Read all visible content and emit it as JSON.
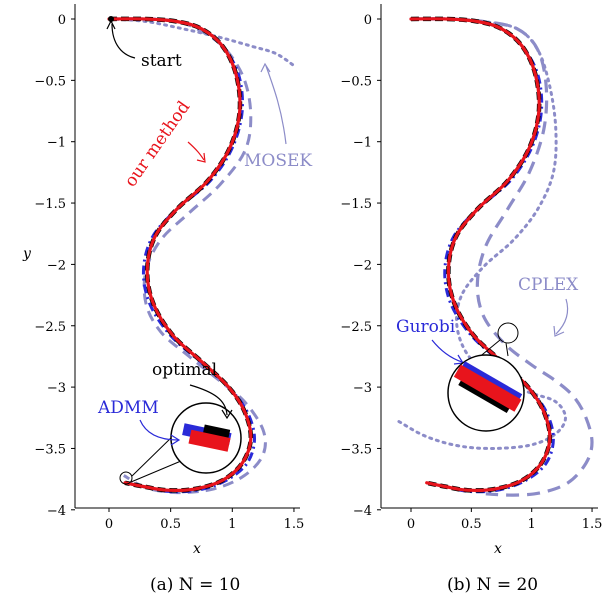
{
  "colors": {
    "ours": "#e8141c",
    "admm": "#2a2ad8",
    "optimal": "#000000",
    "solver": "#8c8cc8"
  },
  "chart_data": [
    {
      "type": "line",
      "caption": "(a) N = 10",
      "xlabel": "x",
      "ylabel": "y",
      "xlim": [
        -0.15,
        1.58
      ],
      "ylim": [
        -4.02,
        0.1
      ],
      "xticks": [
        "0",
        "0.5",
        "1",
        "1.5"
      ],
      "yticks": [
        "0",
        "−0.5",
        "−1",
        "−1.5",
        "−2",
        "−2.5",
        "−3",
        "−3.5",
        "−4"
      ],
      "annotations": {
        "start": "start",
        "ours": "our method",
        "solver": "MOSEK",
        "optimal": "optimal",
        "admm": "ADMM"
      },
      "series": [
        {
          "name": "MOSEK",
          "style": "dotted",
          "x": [
            0.0,
            0.3,
            0.6,
            0.9,
            1.15,
            1.35,
            1.5
          ],
          "y": [
            0.0,
            -0.02,
            -0.08,
            -0.15,
            -0.22,
            -0.28,
            -0.38
          ]
        },
        {
          "name": "solver (dashed)",
          "style": "dashed",
          "x": [
            0.0,
            0.3,
            0.55,
            0.75,
            0.95,
            1.1,
            1.15,
            1.1,
            0.9,
            0.65,
            0.42,
            0.3,
            0.3,
            0.42,
            0.65,
            0.9,
            1.1,
            1.25,
            1.25,
            1.1,
            0.85,
            0.55,
            0.3,
            0.12
          ],
          "y": [
            0.0,
            0.0,
            -0.02,
            -0.1,
            -0.25,
            -0.5,
            -0.8,
            -1.08,
            -1.35,
            -1.58,
            -1.8,
            -2.05,
            -2.32,
            -2.55,
            -2.75,
            -2.95,
            -3.12,
            -3.35,
            -3.55,
            -3.72,
            -3.83,
            -3.86,
            -3.82,
            -3.72
          ]
        },
        {
          "name": "ADMM",
          "style": "dashdot",
          "x": [
            0.0,
            0.3,
            0.55,
            0.75,
            0.92,
            1.05,
            1.08,
            1.0,
            0.82,
            0.55,
            0.35,
            0.28,
            0.33,
            0.5,
            0.75,
            0.97,
            1.12,
            1.18,
            1.12,
            0.95,
            0.72,
            0.48,
            0.28,
            0.13
          ],
          "y": [
            0.0,
            0.0,
            -0.02,
            -0.08,
            -0.22,
            -0.45,
            -0.75,
            -1.05,
            -1.32,
            -1.55,
            -1.78,
            -2.05,
            -2.32,
            -2.58,
            -2.8,
            -3.0,
            -3.2,
            -3.42,
            -3.62,
            -3.76,
            -3.84,
            -3.85,
            -3.81,
            -3.78
          ]
        },
        {
          "name": "optimal",
          "style": "solid",
          "x": [
            0.0,
            0.3,
            0.55,
            0.75,
            0.92,
            1.03,
            1.06,
            0.98,
            0.8,
            0.55,
            0.37,
            0.31,
            0.36,
            0.52,
            0.76,
            0.97,
            1.1,
            1.15,
            1.08,
            0.92,
            0.7,
            0.47,
            0.28,
            0.13
          ],
          "y": [
            0.0,
            0.0,
            -0.02,
            -0.08,
            -0.22,
            -0.45,
            -0.75,
            -1.05,
            -1.32,
            -1.55,
            -1.78,
            -2.05,
            -2.32,
            -2.58,
            -2.8,
            -3.0,
            -3.2,
            -3.42,
            -3.62,
            -3.76,
            -3.83,
            -3.84,
            -3.81,
            -3.78
          ]
        },
        {
          "name": "our method",
          "style": "solid",
          "x": [
            0.0,
            0.3,
            0.55,
            0.75,
            0.92,
            1.03,
            1.06,
            0.98,
            0.8,
            0.55,
            0.37,
            0.31,
            0.36,
            0.52,
            0.76,
            0.97,
            1.1,
            1.15,
            1.08,
            0.92,
            0.7,
            0.47,
            0.28,
            0.13
          ],
          "y": [
            0.0,
            0.0,
            -0.02,
            -0.08,
            -0.22,
            -0.45,
            -0.75,
            -1.05,
            -1.32,
            -1.55,
            -1.78,
            -2.05,
            -2.32,
            -2.58,
            -2.8,
            -3.0,
            -3.2,
            -3.42,
            -3.62,
            -3.76,
            -3.83,
            -3.84,
            -3.81,
            -3.78
          ]
        }
      ]
    },
    {
      "type": "line",
      "caption": "(b) N = 20",
      "xlabel": "x",
      "ylabel": "",
      "xlim": [
        -0.15,
        1.52
      ],
      "ylim": [
        -4.02,
        0.1
      ],
      "xticks": [
        "0",
        "0.5",
        "1",
        "1.5"
      ],
      "yticks": [
        "0",
        "−0.5",
        "−1",
        "−1.5",
        "−2",
        "−2.5",
        "−3",
        "−3.5",
        "−4"
      ],
      "annotations": {
        "solver": "CPLEX",
        "admm": "Gurobi"
      },
      "series": [
        {
          "name": "CPLEX (dotted)",
          "style": "dotted",
          "x": [
            0.0,
            0.3,
            0.6,
            0.88,
            1.05,
            1.15,
            1.2,
            1.18,
            1.05,
            0.85,
            0.6,
            0.42,
            0.38,
            0.48,
            0.72,
            1.0,
            1.2,
            1.28,
            1.2,
            1.0,
            0.7,
            0.4,
            0.12,
            -0.1
          ],
          "y": [
            0.0,
            0.0,
            -0.02,
            -0.08,
            -0.25,
            -0.55,
            -0.9,
            -1.25,
            -1.55,
            -1.8,
            -2.02,
            -2.25,
            -2.5,
            -2.75,
            -2.95,
            -3.05,
            -3.12,
            -3.25,
            -3.38,
            -3.47,
            -3.5,
            -3.48,
            -3.4,
            -3.28
          ]
        },
        {
          "name": "CPLEX (dashed)",
          "style": "dashed",
          "x": [
            0.0,
            0.3,
            0.6,
            0.88,
            1.05,
            1.12,
            1.1,
            0.98,
            0.8,
            0.62,
            0.55,
            0.6,
            0.78,
            1.0,
            1.2,
            1.35,
            1.45,
            1.5,
            1.45,
            1.3,
            1.08,
            0.85,
            0.62
          ],
          "y": [
            0.0,
            0.0,
            -0.02,
            -0.08,
            -0.25,
            -0.55,
            -0.9,
            -1.25,
            -1.55,
            -1.85,
            -2.15,
            -2.42,
            -2.65,
            -2.82,
            -2.95,
            -3.08,
            -3.25,
            -3.45,
            -3.62,
            -3.78,
            -3.86,
            -3.88,
            -3.87
          ]
        },
        {
          "name": "Gurobi",
          "style": "dashdot",
          "x": [
            0.0,
            0.3,
            0.55,
            0.75,
            0.92,
            1.05,
            1.08,
            1.0,
            0.82,
            0.55,
            0.35,
            0.28,
            0.33,
            0.5,
            0.75,
            0.97,
            1.12,
            1.18,
            1.12,
            0.95,
            0.72,
            0.48,
            0.28,
            0.13
          ],
          "y": [
            0.0,
            0.0,
            -0.02,
            -0.08,
            -0.22,
            -0.45,
            -0.75,
            -1.05,
            -1.32,
            -1.55,
            -1.78,
            -2.05,
            -2.32,
            -2.58,
            -2.8,
            -3.0,
            -3.2,
            -3.42,
            -3.62,
            -3.76,
            -3.84,
            -3.85,
            -3.81,
            -3.78
          ]
        },
        {
          "name": "optimal",
          "style": "solid",
          "x": [
            0.0,
            0.3,
            0.55,
            0.75,
            0.92,
            1.03,
            1.06,
            0.98,
            0.8,
            0.55,
            0.37,
            0.31,
            0.36,
            0.52,
            0.76,
            0.97,
            1.1,
            1.15,
            1.08,
            0.92,
            0.7,
            0.47,
            0.28,
            0.13
          ],
          "y": [
            0.0,
            0.0,
            -0.02,
            -0.08,
            -0.22,
            -0.45,
            -0.75,
            -1.05,
            -1.32,
            -1.55,
            -1.78,
            -2.05,
            -2.32,
            -2.58,
            -2.8,
            -3.0,
            -3.2,
            -3.42,
            -3.62,
            -3.76,
            -3.83,
            -3.84,
            -3.81,
            -3.78
          ]
        },
        {
          "name": "our method",
          "style": "solid",
          "x": [
            0.0,
            0.3,
            0.55,
            0.75,
            0.92,
            1.03,
            1.06,
            0.98,
            0.8,
            0.55,
            0.37,
            0.31,
            0.36,
            0.52,
            0.76,
            0.97,
            1.1,
            1.15,
            1.08,
            0.92,
            0.7,
            0.47,
            0.28,
            0.13
          ],
          "y": [
            0.0,
            0.0,
            -0.02,
            -0.08,
            -0.22,
            -0.45,
            -0.75,
            -1.05,
            -1.32,
            -1.55,
            -1.78,
            -2.05,
            -2.32,
            -2.58,
            -2.8,
            -3.0,
            -3.2,
            -3.42,
            -3.62,
            -3.76,
            -3.83,
            -3.84,
            -3.81,
            -3.78
          ]
        }
      ]
    }
  ]
}
